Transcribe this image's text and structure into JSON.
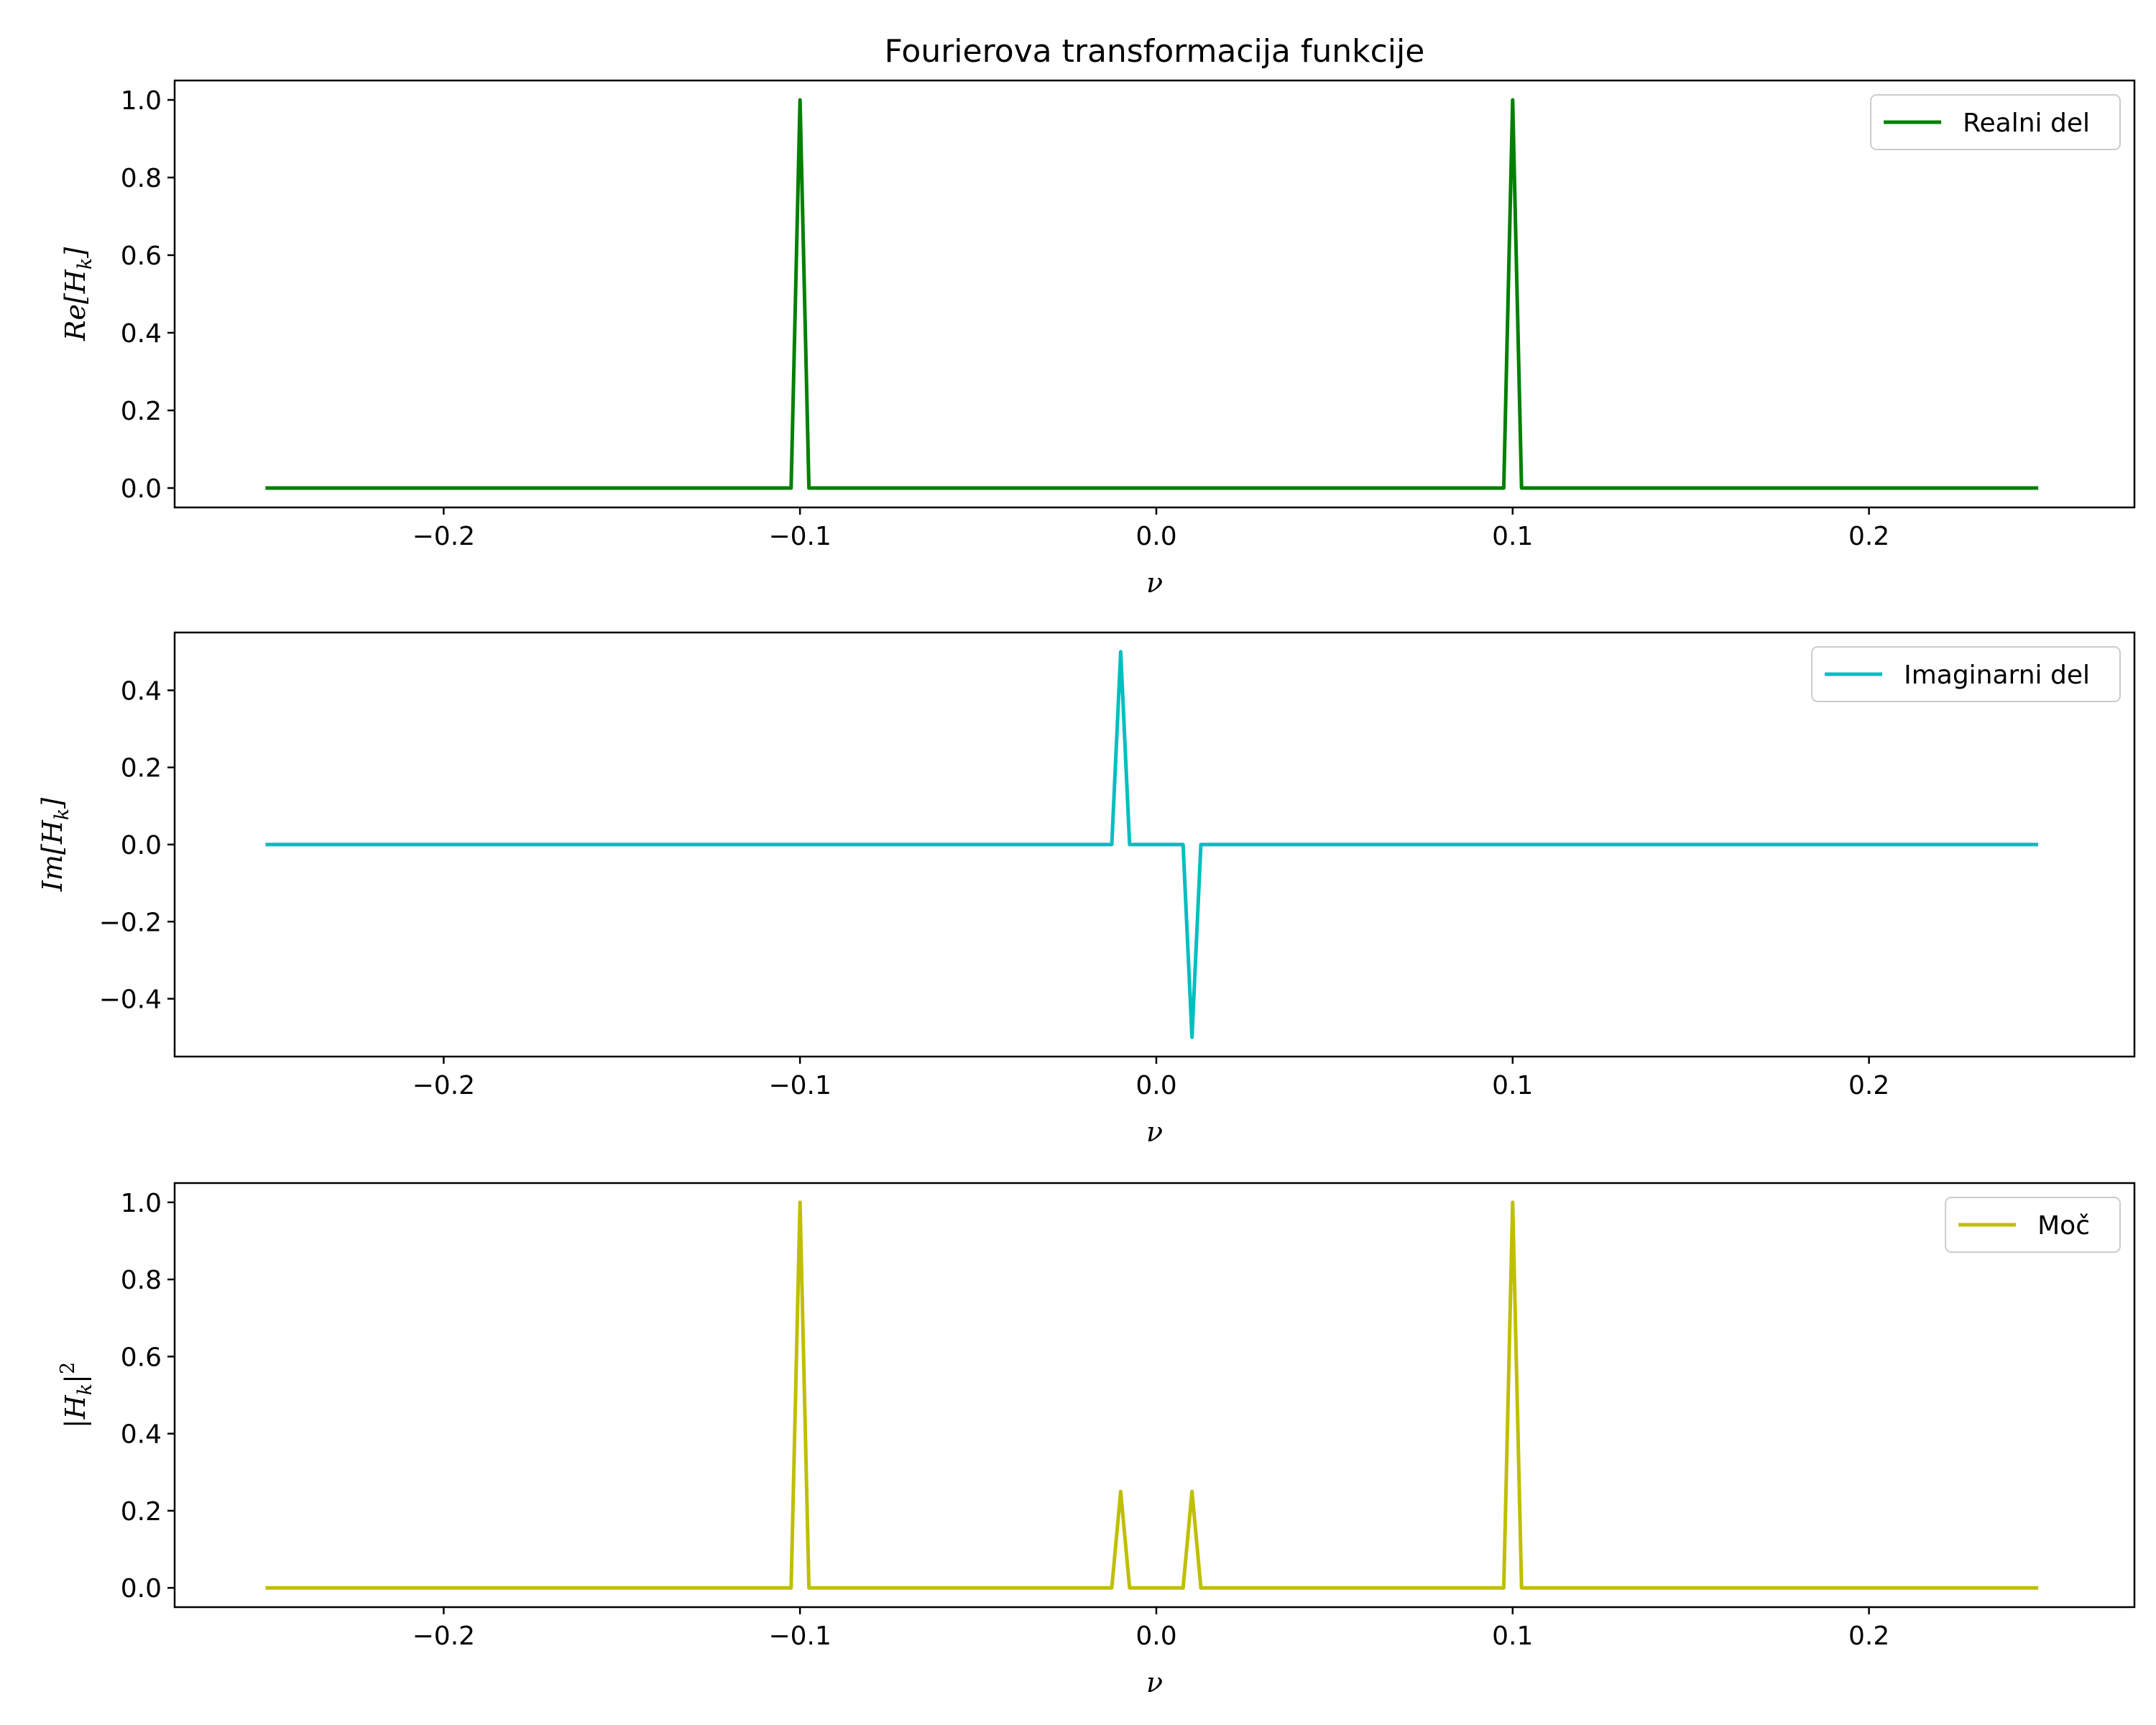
{
  "chart_data": [
    {
      "type": "line",
      "title": "Fourierova transformacija funkcije",
      "xlabel": "ν",
      "ylabel_base": "Re[H",
      "ylabel_sub": "k",
      "ylabel_tail": "]",
      "xlim": [
        -0.2755,
        0.2745
      ],
      "ylim": [
        -0.05,
        1.05
      ],
      "xticks": [
        -0.2,
        -0.1,
        0.0,
        0.1,
        0.2
      ],
      "xtick_labels": [
        "−0.2",
        "−0.1",
        "0.0",
        "0.1",
        "0.2"
      ],
      "yticks": [
        0.0,
        0.2,
        0.4,
        0.6,
        0.8,
        1.0
      ],
      "ytick_labels": [
        "0.0",
        "0.2",
        "0.4",
        "0.6",
        "0.8",
        "1.0"
      ],
      "legend_position": "top-right",
      "series": [
        {
          "name": "Realni del",
          "color": "#008000",
          "x": [
            -0.25,
            -0.1025,
            -0.1,
            -0.0975,
            0.0975,
            0.1,
            0.1025,
            0.2475
          ],
          "y": [
            0,
            0,
            1,
            0,
            0,
            1,
            0,
            0
          ]
        }
      ]
    },
    {
      "type": "line",
      "xlabel": "ν",
      "ylabel_base": "Im[H",
      "ylabel_sub": "k",
      "ylabel_tail": "]",
      "xlim": [
        -0.2755,
        0.2745
      ],
      "ylim": [
        -0.55,
        0.55
      ],
      "xticks": [
        -0.2,
        -0.1,
        0.0,
        0.1,
        0.2
      ],
      "xtick_labels": [
        "−0.2",
        "−0.1",
        "0.0",
        "0.1",
        "0.2"
      ],
      "yticks": [
        -0.4,
        -0.2,
        0.0,
        0.2,
        0.4
      ],
      "ytick_labels": [
        "−0.4",
        "−0.2",
        "0.0",
        "0.2",
        "0.4"
      ],
      "legend_position": "top-right",
      "series": [
        {
          "name": "Imaginarni del",
          "color": "#00bfbf",
          "x": [
            -0.25,
            -0.0125,
            -0.01,
            -0.0075,
            0.0075,
            0.01,
            0.0125,
            0.2475
          ],
          "y": [
            0,
            0,
            0.5,
            0,
            0,
            -0.5,
            0,
            0
          ]
        }
      ]
    },
    {
      "type": "line",
      "xlabel": "ν",
      "ylabel_base": "|H",
      "ylabel_sub": "k",
      "ylabel_tail": "|",
      "ylabel_sup": "2",
      "xlim": [
        -0.2755,
        0.2745
      ],
      "ylim": [
        -0.05,
        1.05
      ],
      "xticks": [
        -0.2,
        -0.1,
        0.0,
        0.1,
        0.2
      ],
      "xtick_labels": [
        "−0.2",
        "−0.1",
        "0.0",
        "0.1",
        "0.2"
      ],
      "yticks": [
        0.0,
        0.2,
        0.4,
        0.6,
        0.8,
        1.0
      ],
      "ytick_labels": [
        "0.0",
        "0.2",
        "0.4",
        "0.6",
        "0.8",
        "1.0"
      ],
      "legend_position": "top-right",
      "series": [
        {
          "name": "Moč",
          "color": "#bfbf00",
          "x": [
            -0.25,
            -0.1025,
            -0.1,
            -0.0975,
            -0.0125,
            -0.01,
            -0.0075,
            0.0075,
            0.01,
            0.0125,
            0.0975,
            0.1,
            0.1025,
            0.2475
          ],
          "y": [
            0,
            0,
            1,
            0,
            0,
            0.25,
            0,
            0,
            0.25,
            0,
            0,
            1,
            0,
            0
          ]
        }
      ]
    }
  ]
}
